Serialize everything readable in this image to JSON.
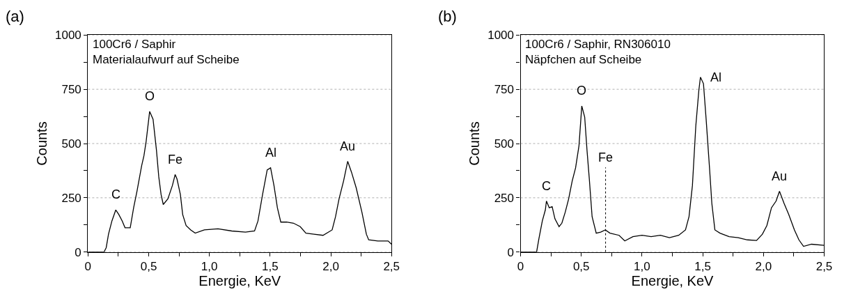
{
  "chart_data": [
    {
      "type": "line",
      "title": "(a)",
      "xlabel": "Energie, KeV",
      "ylabel": "Counts",
      "series": [
        {
          "color": "#000000",
          "x": [
            0,
            0.132,
            0.15,
            0.169,
            0.197,
            0.229,
            0.254,
            0.282,
            0.305,
            0.348,
            0.376,
            0.404,
            0.442,
            0.461,
            0.479,
            0.508,
            0.536,
            0.564,
            0.583,
            0.602,
            0.62,
            0.658,
            0.695,
            0.718,
            0.733,
            0.761,
            0.78,
            0.808,
            0.846,
            0.883,
            0.959,
            1.071,
            1.184,
            1.297,
            1.372,
            1.4,
            1.438,
            1.476,
            1.504,
            1.532,
            1.56,
            1.588,
            1.635,
            1.692,
            1.748,
            1.795,
            1.861,
            1.936,
            2.011,
            2.039,
            2.068,
            2.105,
            2.139,
            2.171,
            2.209,
            2.256,
            2.293,
            2.312,
            2.387,
            2.472,
            2.5
          ],
          "values": [
            0,
            0,
            20,
            82,
            143,
            194,
            173,
            143,
            112,
            112,
            204,
            281,
            398,
            444,
            510,
            648,
            612,
            469,
            347,
            265,
            219,
            245,
            306,
            357,
            337,
            265,
            173,
            122,
            102,
            87,
            102,
            107,
            97,
            92,
            97,
            143,
            265,
            378,
            388,
            306,
            204,
            138,
            138,
            133,
            117,
            87,
            82,
            77,
            102,
            163,
            245,
            327,
            418,
            367,
            296,
            184,
            82,
            56,
            51,
            51,
            36
          ]
        }
      ],
      "annotations": [
        "100Cr6 / Saphir\nMaterialaufwurf auf Scheibe",
        {
          "text": "C",
          "x": 0.229,
          "y": 194
        },
        {
          "text": "O",
          "x": 0.508,
          "y": 648
        },
        {
          "text": "Fe",
          "x": 0.718,
          "y": 357
        },
        {
          "text": "Al",
          "x": 1.504,
          "y": 388
        },
        {
          "text": "Au",
          "x": 2.139,
          "y": 418
        }
      ],
      "xlim": [
        0,
        2.5
      ],
      "ylim": [
        0,
        1000
      ],
      "xticks": [
        {
          "value": 0,
          "label": "0"
        },
        {
          "value": 0.25,
          "label": null
        },
        {
          "value": 0.5,
          "label": "0,5"
        },
        {
          "value": 0.75,
          "label": null
        },
        {
          "value": 1.0,
          "label": "1,0"
        },
        {
          "value": 1.25,
          "label": null
        },
        {
          "value": 1.5,
          "label": "1,5"
        },
        {
          "value": 1.75,
          "label": null
        },
        {
          "value": 2.0,
          "label": "2,0"
        },
        {
          "value": 2.25,
          "label": null
        },
        {
          "value": 2.5,
          "label": "2,5"
        }
      ],
      "yticks": [
        0,
        {
          "value": 125,
          "label": null
        },
        250,
        {
          "value": 375,
          "label": null
        },
        500,
        {
          "value": 625,
          "label": null
        },
        750,
        {
          "value": 875,
          "label": null
        },
        1000
      ],
      "grid": "y",
      "marker": "none",
      "line_style": "solid"
    },
    {
      "type": "line",
      "title": "(b)",
      "xlabel": "Energie, KeV",
      "ylabel": "Counts",
      "series": [
        {
          "color": "#000000",
          "x": [
            0,
            0.132,
            0.151,
            0.179,
            0.204,
            0.213,
            0.236,
            0.26,
            0.283,
            0.317,
            0.34,
            0.368,
            0.396,
            0.425,
            0.453,
            0.481,
            0.504,
            0.528,
            0.547,
            0.566,
            0.589,
            0.623,
            0.66,
            0.698,
            0.736,
            0.811,
            0.858,
            0.925,
            1.0,
            1.075,
            1.151,
            1.226,
            1.302,
            1.358,
            1.387,
            1.415,
            1.443,
            1.468,
            1.481,
            1.506,
            1.528,
            1.557,
            1.575,
            1.6,
            1.642,
            1.717,
            1.792,
            1.868,
            1.943,
            1.991,
            2.028,
            2.066,
            2.104,
            2.132,
            2.17,
            2.208,
            2.255,
            2.292,
            2.33,
            2.396,
            2.5
          ],
          "values": [
            0,
            0,
            61,
            143,
            194,
            235,
            204,
            209,
            153,
            117,
            133,
            184,
            245,
            327,
            388,
            490,
            673,
            622,
            469,
            337,
            163,
            87,
            92,
            102,
            87,
            77,
            51,
            71,
            77,
            71,
            77,
            66,
            77,
            102,
            163,
            306,
            582,
            745,
            806,
            776,
            612,
            378,
            224,
            102,
            87,
            71,
            66,
            56,
            53,
            82,
            122,
            204,
            235,
            280,
            224,
            173,
            102,
            56,
            26,
            36,
            31
          ]
        }
      ],
      "annotations": [
        "100Cr6 / Saphir, RN306010\nNäpfchen auf Scheibe",
        {
          "text": "C",
          "x": 0.213,
          "y": 235
        },
        {
          "text": "O",
          "x": 0.504,
          "y": 673
        },
        {
          "text": "Al",
          "x": 1.481,
          "y": 806
        },
        {
          "text": "Au",
          "x": 2.132,
          "y": 280
        }
      ],
      "ref_lines": [
        {
          "axis": "x",
          "value": 0.7,
          "label": "Fe",
          "color": "#000000",
          "line_style": "dotted"
        }
      ],
      "xlim": [
        0,
        2.5
      ],
      "ylim": [
        0,
        1000
      ],
      "xticks": [
        {
          "value": 0,
          "label": "0"
        },
        {
          "value": 0.25,
          "label": null
        },
        {
          "value": 0.5,
          "label": "0,5"
        },
        {
          "value": 0.75,
          "label": null
        },
        {
          "value": 1.0,
          "label": "1,0"
        },
        {
          "value": 1.25,
          "label": null
        },
        {
          "value": 1.5,
          "label": "1,5"
        },
        {
          "value": 1.75,
          "label": null
        },
        {
          "value": 2.0,
          "label": "2,0"
        },
        {
          "value": 2.25,
          "label": null
        },
        {
          "value": 2.5,
          "label": "2,5"
        }
      ],
      "yticks": [
        0,
        {
          "value": 125,
          "label": null
        },
        250,
        {
          "value": 375,
          "label": null
        },
        500,
        {
          "value": 625,
          "label": null
        },
        750,
        {
          "value": 875,
          "label": null
        },
        1000
      ],
      "grid": "y",
      "marker": "none",
      "line_style": "solid"
    }
  ]
}
